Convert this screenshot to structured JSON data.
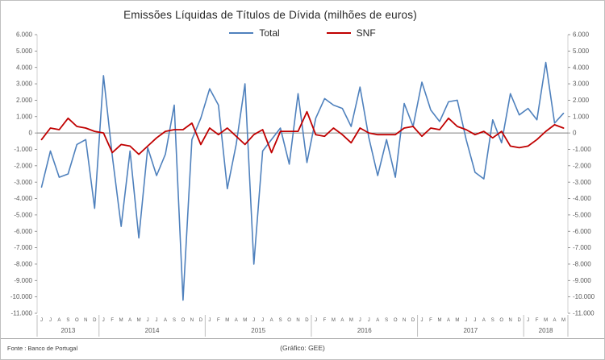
{
  "footer": {
    "source": "Fonte : Banco de Portugal",
    "credit": "(Gráfico: GEE)"
  },
  "chart_data": {
    "type": "line",
    "title": "Emissões Líquidas de Títulos de Dívida (milhões de euros)",
    "xlabel": "",
    "ylabel": "",
    "ylim": [
      -11000,
      6000
    ],
    "grid": false,
    "legend_position": "top-center",
    "yticks": [
      {
        "value": 6000,
        "label": "6.000"
      },
      {
        "value": 5000,
        "label": "5.000"
      },
      {
        "value": 4000,
        "label": "4.000"
      },
      {
        "value": 3000,
        "label": "3.000"
      },
      {
        "value": 2000,
        "label": "2.000"
      },
      {
        "value": 1000,
        "label": "1.000"
      },
      {
        "value": 0,
        "label": "0"
      },
      {
        "value": -1000,
        "label": "-1.000"
      },
      {
        "value": -2000,
        "label": "-2.000"
      },
      {
        "value": -3000,
        "label": "-3.000"
      },
      {
        "value": -4000,
        "label": "-4.000"
      },
      {
        "value": -5000,
        "label": "-5.000"
      },
      {
        "value": -6000,
        "label": "-6.000"
      },
      {
        "value": -7000,
        "label": "-7.000"
      },
      {
        "value": -8000,
        "label": "-8.000"
      },
      {
        "value": -9000,
        "label": "-9.000"
      },
      {
        "value": -10000,
        "label": "-10.000"
      },
      {
        "value": -11000,
        "label": "-11.000"
      }
    ],
    "groups": [
      {
        "year": "2013",
        "months": [
          "J",
          "J",
          "A",
          "S",
          "O",
          "N",
          "D"
        ]
      },
      {
        "year": "2014",
        "months": [
          "J",
          "F",
          "M",
          "A",
          "M",
          "J",
          "J",
          "A",
          "S",
          "O",
          "N",
          "D"
        ]
      },
      {
        "year": "2015",
        "months": [
          "J",
          "F",
          "M",
          "A",
          "M",
          "J",
          "J",
          "A",
          "S",
          "O",
          "N",
          "D"
        ]
      },
      {
        "year": "2016",
        "months": [
          "J",
          "F",
          "M",
          "A",
          "M",
          "J",
          "J",
          "A",
          "S",
          "O",
          "N",
          "D"
        ]
      },
      {
        "year": "2017",
        "months": [
          "J",
          "F",
          "M",
          "A",
          "M",
          "J",
          "J",
          "A",
          "S",
          "O",
          "N",
          "D"
        ]
      },
      {
        "year": "2018",
        "months": [
          "J",
          "F",
          "M",
          "A",
          "M"
        ]
      }
    ],
    "series": [
      {
        "name": "Total",
        "color": "#4F81BD",
        "width": 1.6,
        "values": [
          -3300,
          -1100,
          -2700,
          -2500,
          -700,
          -400,
          -4600,
          3500,
          -1400,
          -5700,
          -1100,
          -6400,
          -900,
          -2600,
          -1300,
          1700,
          -10200,
          -400,
          900,
          2700,
          1700,
          -3400,
          -700,
          3000,
          -8000,
          -1100,
          -400,
          300,
          -1900,
          2400,
          -1800,
          900,
          2100,
          1700,
          1500,
          400,
          2800,
          -300,
          -2600,
          -400,
          -2700,
          1800,
          400,
          3100,
          1400,
          700,
          1900,
          2000,
          -400,
          -2400,
          -2800,
          800,
          -600,
          2400,
          1100,
          1500,
          800,
          4300,
          600,
          1200
        ]
      },
      {
        "name": "SNF",
        "color": "#C00000",
        "width": 1.8,
        "values": [
          -400,
          300,
          200,
          900,
          400,
          300,
          100,
          0,
          -1200,
          -700,
          -800,
          -1300,
          -800,
          -300,
          100,
          200,
          200,
          600,
          -700,
          300,
          -100,
          300,
          -200,
          -700,
          -100,
          200,
          -1200,
          100,
          100,
          100,
          1300,
          -100,
          -200,
          300,
          -100,
          -600,
          300,
          0,
          -100,
          -100,
          -100,
          300,
          400,
          -200,
          300,
          200,
          900,
          400,
          200,
          -100,
          100,
          -300,
          100,
          -800,
          -900,
          -800,
          -400,
          100,
          500,
          300
        ]
      }
    ]
  }
}
